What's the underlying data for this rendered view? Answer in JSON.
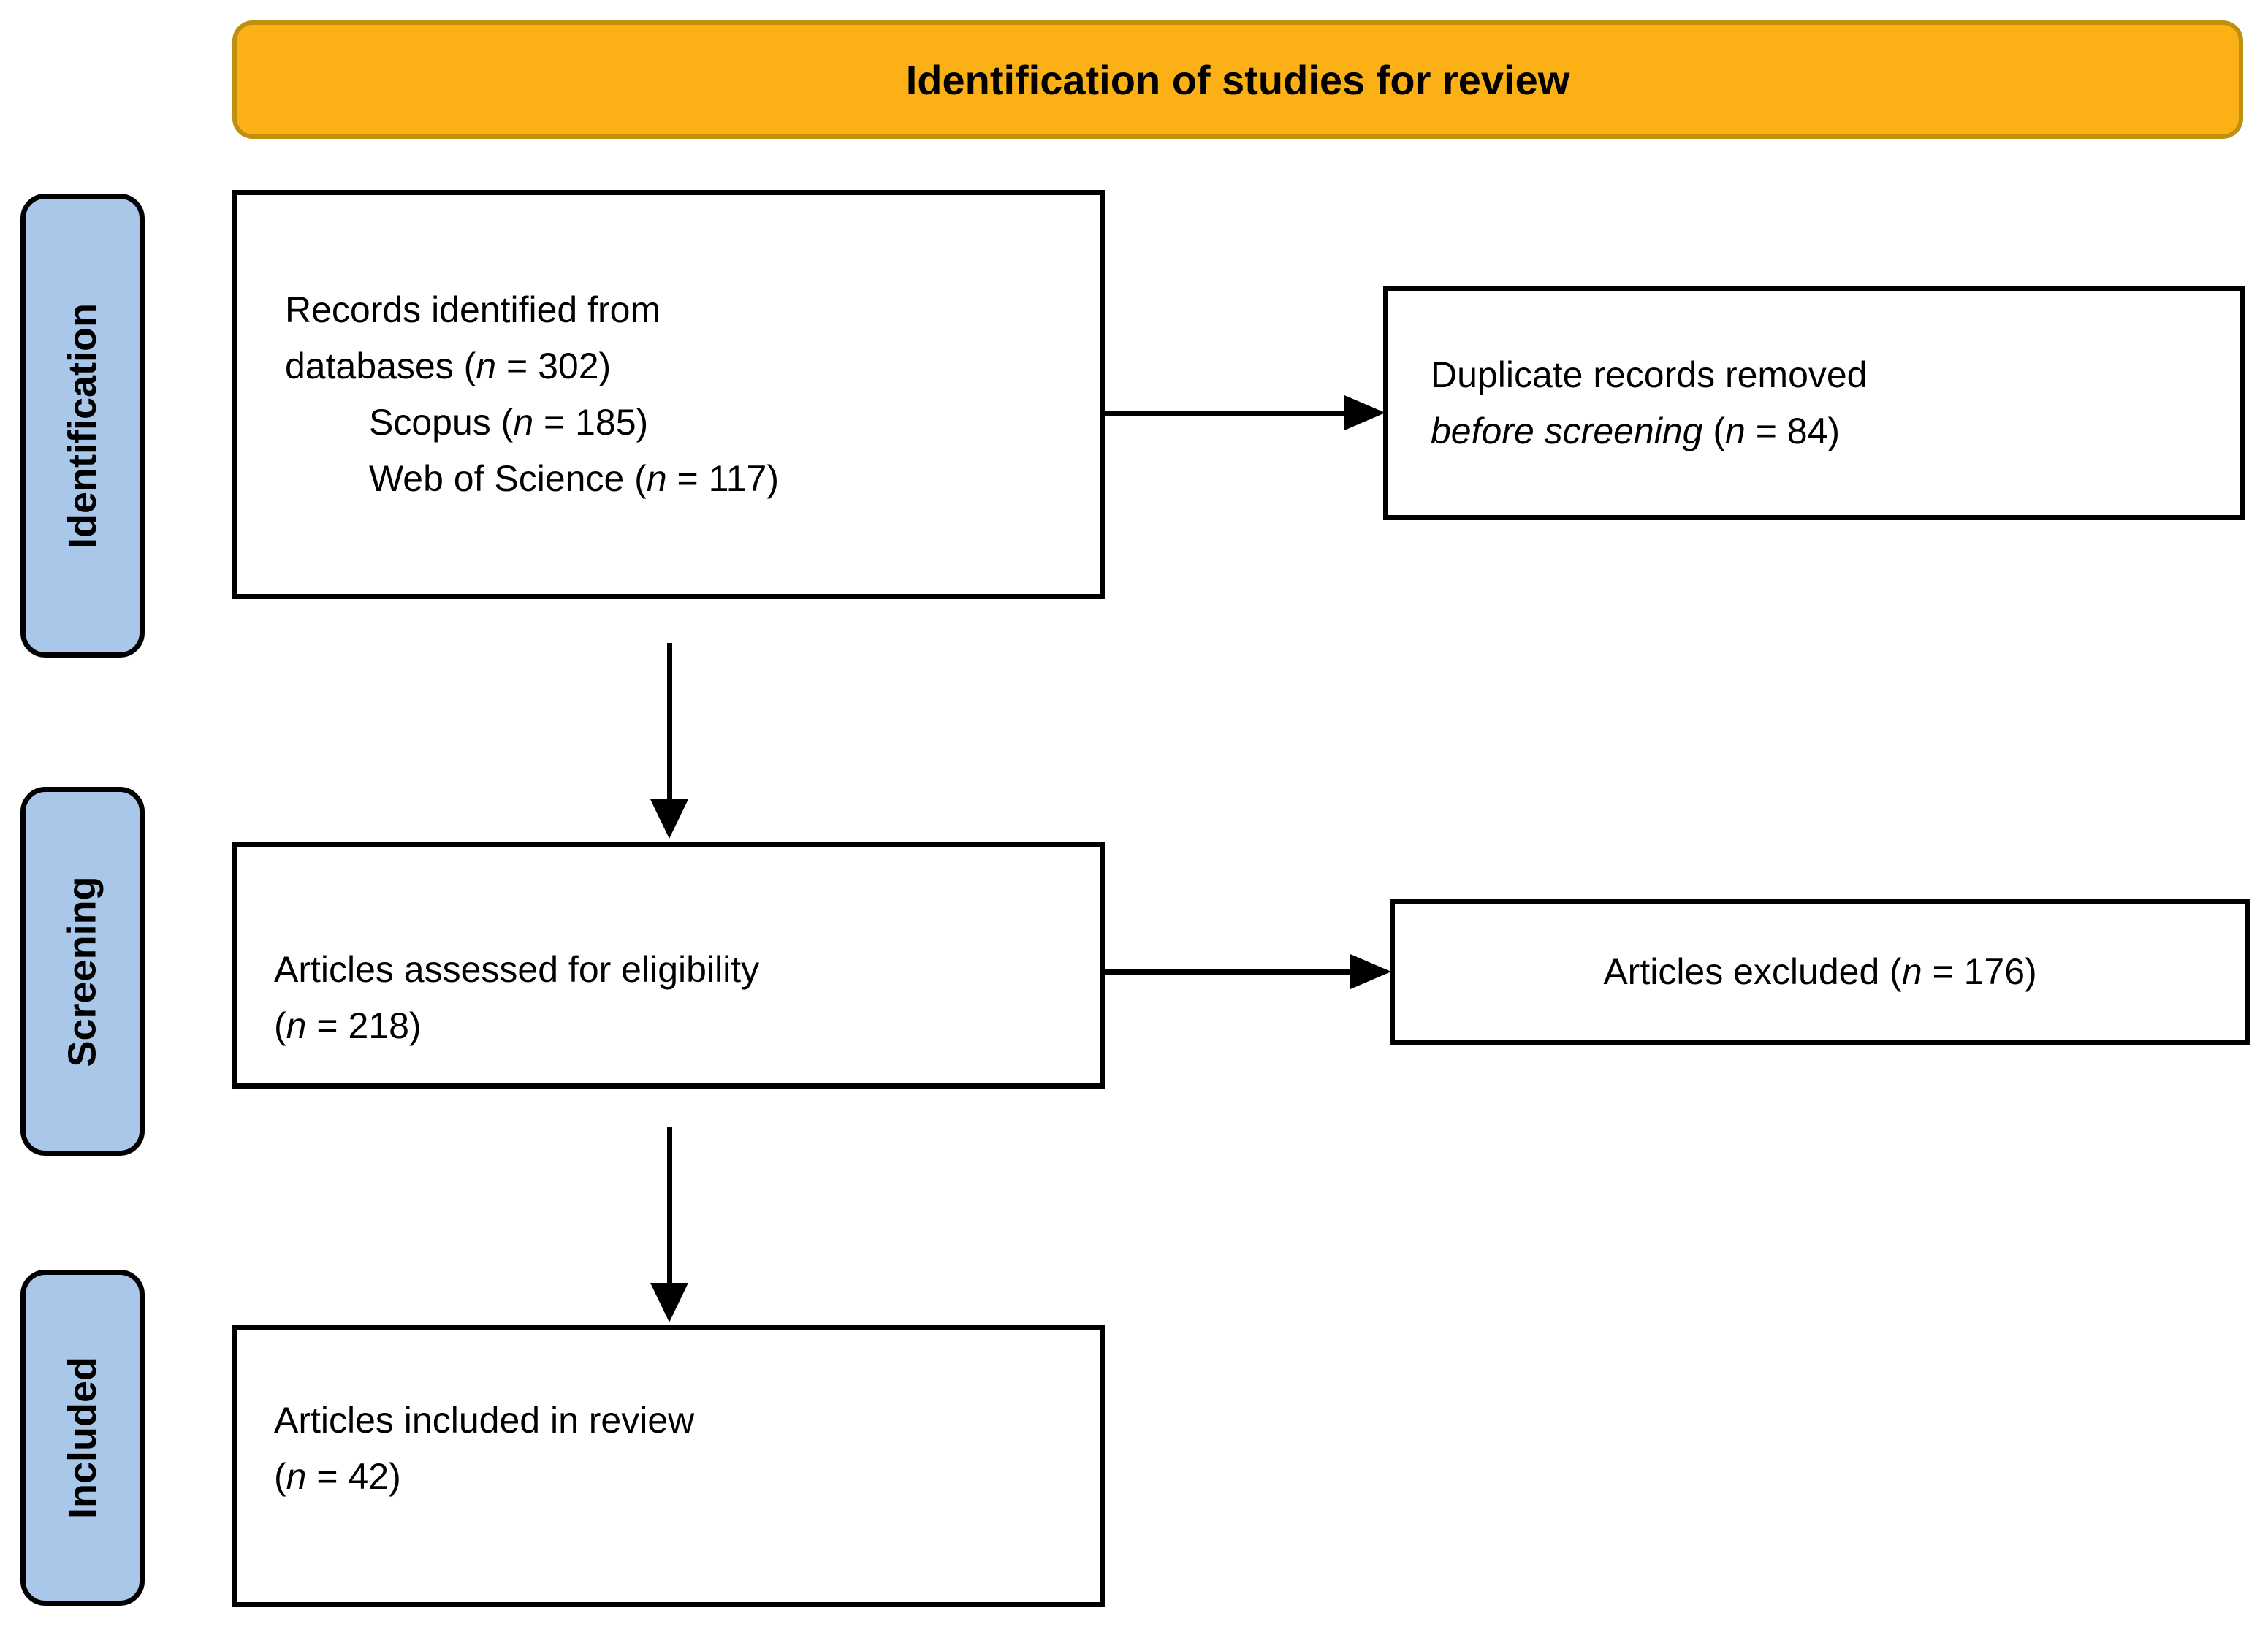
{
  "figure": {
    "type": "prisma-flow-diagram",
    "banner_title": "Identification of studies for review"
  },
  "colors": {
    "banner_fill": "#FBB116",
    "banner_border": "#BF8F0E",
    "stage_fill": "#A9C7E8",
    "box_background": "#FFFFFF",
    "outline": "#000000"
  },
  "stages": [
    {
      "label": "Identification"
    },
    {
      "label": "Screening"
    },
    {
      "label": "Included"
    }
  ],
  "boxes": {
    "records": {
      "lines": [
        {
          "segments": [
            {
              "text": "Records identified from"
            }
          ]
        },
        {
          "segments": [
            {
              "text": "databases ("
            },
            {
              "text": "n",
              "italic": true
            },
            {
              "text": " = 302)"
            }
          ]
        },
        {
          "indent": true,
          "segments": [
            {
              "text": "Scopus ("
            },
            {
              "text": "n",
              "italic": true
            },
            {
              "text": " = 185)"
            }
          ]
        },
        {
          "indent": true,
          "segments": [
            {
              "text": "Web of Science ("
            },
            {
              "text": "n",
              "italic": true
            },
            {
              "text": " = 117)"
            }
          ]
        }
      ]
    },
    "duplicates": {
      "lines": [
        {
          "segments": [
            {
              "text": "Duplicate records removed"
            }
          ]
        },
        {
          "segments": [
            {
              "text": "before screening",
              "italic": true
            },
            {
              "text": " ("
            },
            {
              "text": "n",
              "italic": true
            },
            {
              "text": " = 84)"
            }
          ]
        }
      ]
    },
    "eligibility": {
      "lines": [
        {
          "segments": [
            {
              "text": "Articles assessed for eligibility"
            }
          ]
        },
        {
          "segments": [
            {
              "text": "("
            },
            {
              "text": "n",
              "italic": true
            },
            {
              "text": " = 218)"
            }
          ]
        }
      ]
    },
    "excluded": {
      "lines": [
        {
          "segments": [
            {
              "text": "Articles excluded ("
            },
            {
              "text": "n",
              "italic": true
            },
            {
              "text": " = 176)"
            }
          ]
        }
      ]
    },
    "included": {
      "lines": [
        {
          "segments": [
            {
              "text": "Articles included in review"
            }
          ]
        },
        {
          "segments": [
            {
              "text": "("
            },
            {
              "text": "n",
              "italic": true
            },
            {
              "text": " = 42)"
            }
          ]
        }
      ]
    }
  },
  "arrows": [
    {
      "name": "records-to-duplicates",
      "direction": "right"
    },
    {
      "name": "records-to-eligibility",
      "direction": "down"
    },
    {
      "name": "eligibility-to-excluded",
      "direction": "right"
    },
    {
      "name": "eligibility-to-included",
      "direction": "down"
    }
  ]
}
